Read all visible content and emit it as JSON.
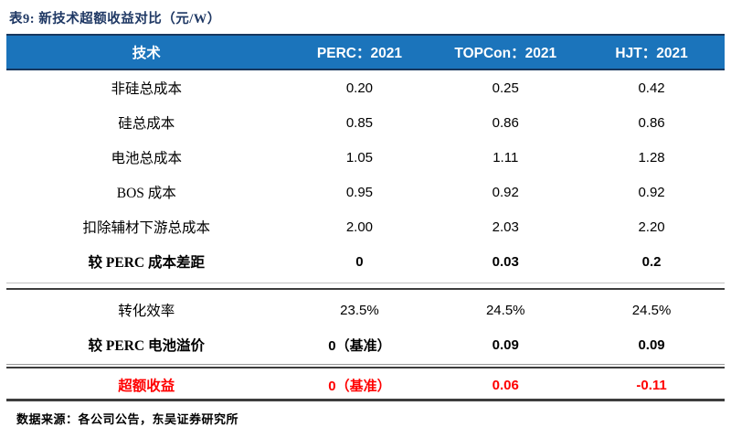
{
  "colors": {
    "header_bg": "#1B74BB",
    "header_border_navy": "#17375E",
    "title_navy": "#1F3864",
    "highlight_red": "#FF0000",
    "rule_dark": "#3d3d3d"
  },
  "title": "表9:  新技术超额收益对比（元/W）",
  "table": {
    "headers": [
      "技术",
      "PERC：2021",
      "TOPCon：2021",
      "HJT：2021"
    ],
    "rows": [
      {
        "label": "非硅总成本",
        "values": [
          "0.20",
          "0.25",
          "0.42"
        ]
      },
      {
        "label": "硅总成本",
        "values": [
          "0.85",
          "0.86",
          "0.86"
        ]
      },
      {
        "label": "电池总成本",
        "values": [
          "1.05",
          "1.11",
          "1.28"
        ]
      },
      {
        "label": "BOS 成本",
        "values": [
          "0.95",
          "0.92",
          "0.92"
        ]
      },
      {
        "label": "扣除辅材下游总成本",
        "values": [
          "2.00",
          "2.03",
          "2.20"
        ]
      },
      {
        "label": "较 PERC 成本差距",
        "values": [
          "0",
          "0.03",
          "0.2"
        ]
      },
      {
        "label": "转化效率",
        "values": [
          "23.5%",
          "24.5%",
          "24.5%"
        ]
      },
      {
        "label": "较 PERC 电池溢价",
        "values": [
          "0（基准）",
          "0.09",
          "0.09"
        ]
      },
      {
        "label": "超额收益",
        "values": [
          "0（基准）",
          "0.06",
          "-0.11"
        ]
      }
    ]
  },
  "footer": "数据来源：各公司公告，东吴证券研究所"
}
